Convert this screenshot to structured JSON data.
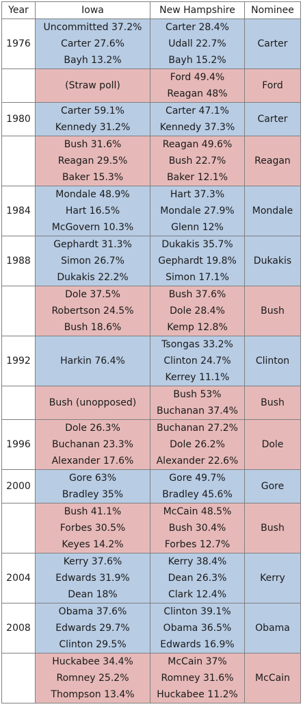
{
  "headers": [
    "Year",
    "Iowa",
    "New Hampshire",
    "Nominee"
  ],
  "colors": {
    "democratic": "#b8cce4",
    "republican": "#e6b9b8",
    "border": "#7f7f7f"
  },
  "rows": [
    {
      "year": "1976",
      "party": "democratic",
      "iowa": [
        "Uncommitted 37.2%",
        "Carter 27.6%",
        "Bayh 13.2%"
      ],
      "nh": [
        "Carter 28.4%",
        "Udall 22.7%",
        "Bayh 15.2%"
      ],
      "nominee": "Carter"
    },
    {
      "year": "",
      "party": "republican",
      "iowa": [
        "(Straw poll)"
      ],
      "nh": [
        "Ford 49.4%",
        "Reagan 48%"
      ],
      "nominee": "Ford"
    },
    {
      "year": "1980",
      "party": "democratic",
      "iowa": [
        "Carter 59.1%",
        "Kennedy 31.2%"
      ],
      "nh": [
        "Carter 47.1%",
        "Kennedy 37.3%"
      ],
      "nominee": "Carter"
    },
    {
      "year": "",
      "party": "republican",
      "iowa": [
        "Bush 31.6%",
        "Reagan 29.5%",
        "Baker 15.3%"
      ],
      "nh": [
        "Reagan 49.6%",
        "Bush 22.7%",
        "Baker 12.1%"
      ],
      "nominee": "Reagan"
    },
    {
      "year": "1984",
      "party": "democratic",
      "iowa": [
        "Mondale 48.9%",
        "Hart 16.5%",
        "McGovern 10.3%"
      ],
      "nh": [
        "Hart 37.3%",
        "Mondale 27.9%",
        "Glenn 12%"
      ],
      "nominee": "Mondale"
    },
    {
      "year": "1988",
      "party": "democratic",
      "iowa": [
        "Gephardt 31.3%",
        "Simon 26.7%",
        "Dukakis 22.2%"
      ],
      "nh": [
        "Dukakis 35.7%",
        "Gephardt 19.8%",
        "Simon 17.1%"
      ],
      "nominee": "Dukakis"
    },
    {
      "year": "",
      "party": "republican",
      "iowa": [
        "Dole 37.5%",
        "Robertson 24.5%",
        "Bush 18.6%"
      ],
      "nh": [
        "Bush 37.6%",
        "Dole 28.4%",
        "Kemp 12.8%"
      ],
      "nominee": "Bush"
    },
    {
      "year": "1992",
      "party": "democratic",
      "iowa": [
        "Harkin 76.4%"
      ],
      "nh": [
        "Tsongas 33.2%",
        "Clinton 24.7%",
        "Kerrey 11.1%"
      ],
      "nominee": "Clinton"
    },
    {
      "year": "",
      "party": "republican",
      "iowa": [
        "Bush (unopposed)"
      ],
      "nh": [
        "Bush 53%",
        "Buchanan 37.4%"
      ],
      "nominee": "Bush"
    },
    {
      "year": "1996",
      "party": "republican",
      "iowa": [
        "Dole 26.3%",
        "Buchanan 23.3%",
        "Alexander 17.6%"
      ],
      "nh": [
        "Buchanan 27.2%",
        "Dole 26.2%",
        "Alexander 22.6%"
      ],
      "nominee": "Dole"
    },
    {
      "year": "2000",
      "party": "democratic",
      "iowa": [
        "Gore 63%",
        "Bradley 35%"
      ],
      "nh": [
        "Gore 49.7%",
        "Bradley 45.6%"
      ],
      "nominee": "Gore"
    },
    {
      "year": "",
      "party": "republican",
      "iowa": [
        "Bush 41.1%",
        "Forbes 30.5%",
        "Keyes 14.2%"
      ],
      "nh": [
        "McCain 48.5%",
        "Bush 30.4%",
        "Forbes 12.7%"
      ],
      "nominee": "Bush"
    },
    {
      "year": "2004",
      "party": "democratic",
      "iowa": [
        "Kerry 37.6%",
        "Edwards 31.9%",
        "Dean 18%"
      ],
      "nh": [
        "Kerry 38.4%",
        "Dean 26.3%",
        "Clark 12.4%"
      ],
      "nominee": "Kerry"
    },
    {
      "year": "2008",
      "party": "democratic",
      "iowa": [
        "Obama 37.6%",
        "Edwards 29.7%",
        "Clinton 29.5%"
      ],
      "nh": [
        "Clinton 39.1%",
        "Obama 36.5%",
        "Edwards 16.9%"
      ],
      "nominee": "Obama"
    },
    {
      "year": "",
      "party": "republican",
      "iowa": [
        "Huckabee 34.4%",
        "Romney 25.2%",
        "Thompson 13.4%"
      ],
      "nh": [
        "McCain 37%",
        "Romney 31.6%",
        "Huckabee 11.2%"
      ],
      "nominee": "McCain"
    }
  ]
}
